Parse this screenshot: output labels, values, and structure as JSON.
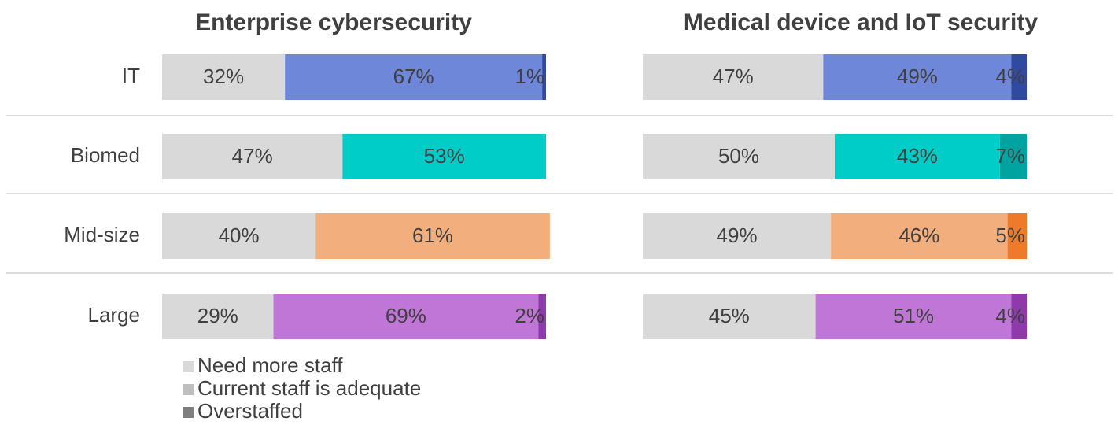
{
  "chart_data": [
    {
      "type": "bar",
      "orientation": "horizontal",
      "stacked": true,
      "title": "Enterprise cybersecurity",
      "categories": [
        "IT",
        "Biomed",
        "Mid-size",
        "Large"
      ],
      "series": [
        {
          "name": "Need more staff",
          "color": "#d9d9d9",
          "colors": [
            "#d9d9d9",
            "#d9d9d9",
            "#d9d9d9",
            "#d9d9d9"
          ],
          "values": [
            32,
            47,
            40,
            29
          ],
          "value_labels": [
            "32%",
            "47%",
            "40%",
            "29%"
          ]
        },
        {
          "name": "Current staff is adequate",
          "color": "#bfbfbf",
          "colors": [
            "#6f87d8",
            "#00cdc8",
            "#f2ae7c",
            "#bf76d6"
          ],
          "values": [
            67,
            53,
            61,
            69
          ],
          "value_labels": [
            "67%",
            "53%",
            "61%",
            "69%"
          ]
        },
        {
          "name": "Overstaffed",
          "color": "#7f7f7f",
          "colors": [
            "#2f4aa0",
            "#00a3a0",
            "#ee7a2a",
            "#8e3aab"
          ],
          "values": [
            1,
            null,
            null,
            2
          ],
          "value_labels": [
            "1%",
            null,
            null,
            "2%"
          ]
        }
      ]
    },
    {
      "type": "bar",
      "orientation": "horizontal",
      "stacked": true,
      "title": "Medical device and IoT security",
      "series": [
        {
          "colors": [
            "#d9d9d9",
            "#d9d9d9",
            "#d9d9d9",
            "#d9d9d9"
          ],
          "values": [
            47,
            50,
            49,
            45
          ],
          "value_labels": [
            "47%",
            "50%",
            "49%",
            "45%"
          ]
        },
        {
          "colors": [
            "#6f87d8",
            "#00cdc8",
            "#f2ae7c",
            "#bf76d6"
          ],
          "values": [
            49,
            43,
            46,
            51
          ],
          "value_labels": [
            "49%",
            "43%",
            "46%",
            "51%"
          ]
        },
        {
          "colors": [
            "#2f4aa0",
            "#00a3a0",
            "#ee7a2a",
            "#8e3aab"
          ],
          "values": [
            4,
            7,
            5,
            4
          ],
          "value_labels": [
            "4%",
            "7%",
            "5%",
            "4%"
          ]
        }
      ]
    }
  ]
}
